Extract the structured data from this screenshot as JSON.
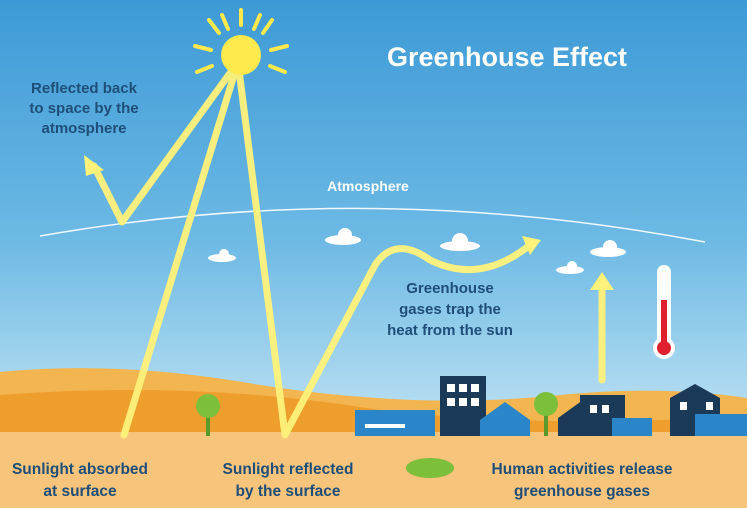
{
  "title": "Greenhouse Effect",
  "atmosphere_label": "Atmosphere",
  "reflected_by_atmosphere": {
    "lines": [
      "Reflected back",
      "to space by the",
      "atmosphere"
    ]
  },
  "greenhouse_gases": {
    "lines": [
      "Greenhouse",
      "gases trap the",
      "heat from the sun"
    ]
  },
  "footer": [
    {
      "lines": [
        "Sunlight absorbed",
        "at surface"
      ]
    },
    {
      "lines": [
        "Sunlight reflected",
        "by the surface"
      ]
    },
    {
      "lines": [
        "Human activities release",
        "greenhouse gases"
      ]
    }
  ]
}
